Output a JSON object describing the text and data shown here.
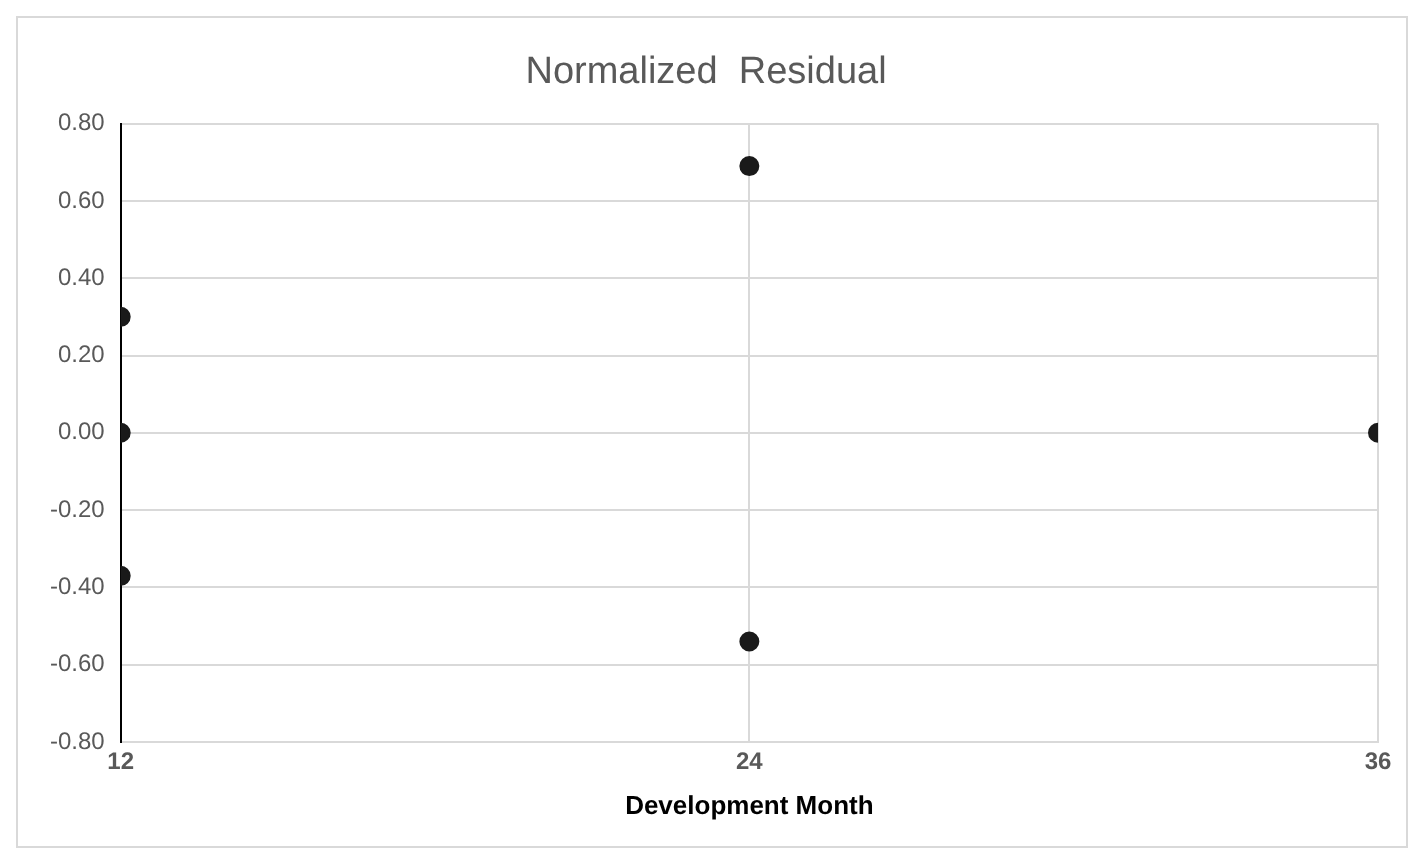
{
  "chart_data": {
    "type": "scatter",
    "title": "Normalized  Residual",
    "xlabel": "Development Month",
    "x": [
      12,
      12,
      12,
      24,
      24,
      36
    ],
    "series": [
      {
        "color": "#1a1a1a",
        "values": [
          0.3,
          0,
          -0.37,
          0.69,
          -0.54,
          0
        ]
      }
    ],
    "xlim": [
      12,
      36
    ],
    "xticks": [
      12,
      24,
      36
    ],
    "ylim": [
      -0.8,
      0.8
    ],
    "yticks": [
      {
        "value": -0.8,
        "label": "-0.80"
      },
      {
        "value": -0.6,
        "label": "-0.60"
      },
      {
        "value": -0.4,
        "label": "-0.40"
      },
      {
        "value": -0.2,
        "label": "-0.20"
      },
      {
        "value": 0,
        "label": "0.00"
      },
      {
        "value": 0.2,
        "label": "0.20"
      },
      {
        "value": 0.4,
        "label": "0.40"
      },
      {
        "value": 0.6,
        "label": "0.60"
      },
      {
        "value": 0.8,
        "label": "0.80"
      }
    ],
    "grid": true,
    "legend": false,
    "marker": "circle"
  }
}
